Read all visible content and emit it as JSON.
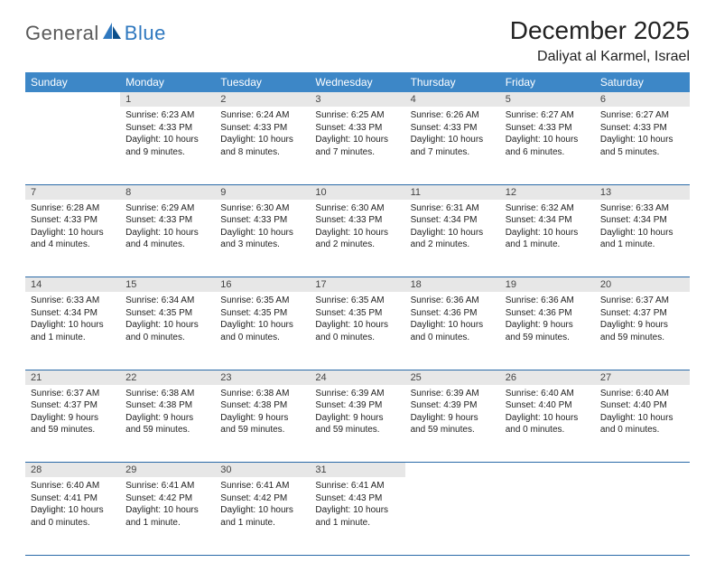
{
  "logo": {
    "text1": "General",
    "text2": "Blue"
  },
  "title": "December 2025",
  "location": "Daliyat al Karmel, Israel",
  "colors": {
    "header_bg": "#3d87c7",
    "header_text": "#ffffff",
    "daynum_bg": "#e7e7e7",
    "rule": "#2a6aa8",
    "logo_gray": "#5a5a5a",
    "logo_blue": "#2f78bf"
  },
  "weekdays": [
    "Sunday",
    "Monday",
    "Tuesday",
    "Wednesday",
    "Thursday",
    "Friday",
    "Saturday"
  ],
  "weeks": [
    [
      null,
      {
        "n": "1",
        "sr": "6:23 AM",
        "ss": "4:33 PM",
        "dl": "10 hours and 9 minutes."
      },
      {
        "n": "2",
        "sr": "6:24 AM",
        "ss": "4:33 PM",
        "dl": "10 hours and 8 minutes."
      },
      {
        "n": "3",
        "sr": "6:25 AM",
        "ss": "4:33 PM",
        "dl": "10 hours and 7 minutes."
      },
      {
        "n": "4",
        "sr": "6:26 AM",
        "ss": "4:33 PM",
        "dl": "10 hours and 7 minutes."
      },
      {
        "n": "5",
        "sr": "6:27 AM",
        "ss": "4:33 PM",
        "dl": "10 hours and 6 minutes."
      },
      {
        "n": "6",
        "sr": "6:27 AM",
        "ss": "4:33 PM",
        "dl": "10 hours and 5 minutes."
      }
    ],
    [
      {
        "n": "7",
        "sr": "6:28 AM",
        "ss": "4:33 PM",
        "dl": "10 hours and 4 minutes."
      },
      {
        "n": "8",
        "sr": "6:29 AM",
        "ss": "4:33 PM",
        "dl": "10 hours and 4 minutes."
      },
      {
        "n": "9",
        "sr": "6:30 AM",
        "ss": "4:33 PM",
        "dl": "10 hours and 3 minutes."
      },
      {
        "n": "10",
        "sr": "6:30 AM",
        "ss": "4:33 PM",
        "dl": "10 hours and 2 minutes."
      },
      {
        "n": "11",
        "sr": "6:31 AM",
        "ss": "4:34 PM",
        "dl": "10 hours and 2 minutes."
      },
      {
        "n": "12",
        "sr": "6:32 AM",
        "ss": "4:34 PM",
        "dl": "10 hours and 1 minute."
      },
      {
        "n": "13",
        "sr": "6:33 AM",
        "ss": "4:34 PM",
        "dl": "10 hours and 1 minute."
      }
    ],
    [
      {
        "n": "14",
        "sr": "6:33 AM",
        "ss": "4:34 PM",
        "dl": "10 hours and 1 minute."
      },
      {
        "n": "15",
        "sr": "6:34 AM",
        "ss": "4:35 PM",
        "dl": "10 hours and 0 minutes."
      },
      {
        "n": "16",
        "sr": "6:35 AM",
        "ss": "4:35 PM",
        "dl": "10 hours and 0 minutes."
      },
      {
        "n": "17",
        "sr": "6:35 AM",
        "ss": "4:35 PM",
        "dl": "10 hours and 0 minutes."
      },
      {
        "n": "18",
        "sr": "6:36 AM",
        "ss": "4:36 PM",
        "dl": "10 hours and 0 minutes."
      },
      {
        "n": "19",
        "sr": "6:36 AM",
        "ss": "4:36 PM",
        "dl": "9 hours and 59 minutes."
      },
      {
        "n": "20",
        "sr": "6:37 AM",
        "ss": "4:37 PM",
        "dl": "9 hours and 59 minutes."
      }
    ],
    [
      {
        "n": "21",
        "sr": "6:37 AM",
        "ss": "4:37 PM",
        "dl": "9 hours and 59 minutes."
      },
      {
        "n": "22",
        "sr": "6:38 AM",
        "ss": "4:38 PM",
        "dl": "9 hours and 59 minutes."
      },
      {
        "n": "23",
        "sr": "6:38 AM",
        "ss": "4:38 PM",
        "dl": "9 hours and 59 minutes."
      },
      {
        "n": "24",
        "sr": "6:39 AM",
        "ss": "4:39 PM",
        "dl": "9 hours and 59 minutes."
      },
      {
        "n": "25",
        "sr": "6:39 AM",
        "ss": "4:39 PM",
        "dl": "9 hours and 59 minutes."
      },
      {
        "n": "26",
        "sr": "6:40 AM",
        "ss": "4:40 PM",
        "dl": "10 hours and 0 minutes."
      },
      {
        "n": "27",
        "sr": "6:40 AM",
        "ss": "4:40 PM",
        "dl": "10 hours and 0 minutes."
      }
    ],
    [
      {
        "n": "28",
        "sr": "6:40 AM",
        "ss": "4:41 PM",
        "dl": "10 hours and 0 minutes."
      },
      {
        "n": "29",
        "sr": "6:41 AM",
        "ss": "4:42 PM",
        "dl": "10 hours and 1 minute."
      },
      {
        "n": "30",
        "sr": "6:41 AM",
        "ss": "4:42 PM",
        "dl": "10 hours and 1 minute."
      },
      {
        "n": "31",
        "sr": "6:41 AM",
        "ss": "4:43 PM",
        "dl": "10 hours and 1 minute."
      },
      null,
      null,
      null
    ]
  ],
  "labels": {
    "sunrise": "Sunrise:",
    "sunset": "Sunset:",
    "daylight": "Daylight:"
  }
}
